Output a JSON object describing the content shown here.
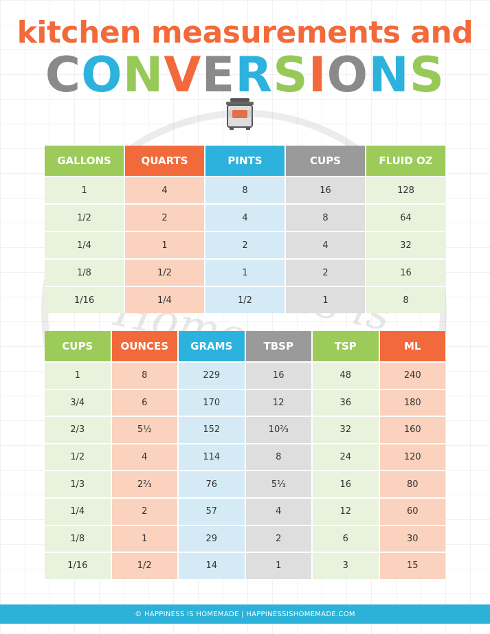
{
  "header": {
    "title": "kitchen measurements and",
    "subtitle": "CONVERSIONS",
    "subtitle_colors": [
      "#8a8a8a",
      "#2cb2dc",
      "#96c957",
      "#f26a3b",
      "#8a8a8a",
      "#2cb2dc",
      "#96c957",
      "#f26a3b",
      "#8a8a8a",
      "#2cb2dc",
      "#96c957"
    ]
  },
  "watermark": "Happiness is Homemade",
  "tables": [
    {
      "headers": [
        "GALLONS",
        "QUARTS",
        "PINTS",
        "CUPS",
        "FLUID OZ"
      ],
      "header_colors": [
        "#9ccb5a",
        "#f26a3b",
        "#2cb2dc",
        "#9a9a9a",
        "#9ccb5a"
      ],
      "body_colors": [
        "#e8f2dc",
        "#fad2bd",
        "#d4ebf6",
        "#dedede",
        "#e8f2dc"
      ],
      "rows": [
        [
          "1",
          "4",
          "8",
          "16",
          "128"
        ],
        [
          "1/2",
          "2",
          "4",
          "8",
          "64"
        ],
        [
          "1/4",
          "1",
          "2",
          "4",
          "32"
        ],
        [
          "1/8",
          "1/2",
          "1",
          "2",
          "16"
        ],
        [
          "1/16",
          "1/4",
          "1/2",
          "1",
          "8"
        ]
      ]
    },
    {
      "headers": [
        "CUPS",
        "OUNCES",
        "GRAMS",
        "TBSP",
        "TSP",
        "ML"
      ],
      "header_colors": [
        "#9ccb5a",
        "#f26a3b",
        "#2cb2dc",
        "#9a9a9a",
        "#9ccb5a",
        "#f26a3b"
      ],
      "body_colors": [
        "#e8f2dc",
        "#fad2bd",
        "#d4ebf6",
        "#dedede",
        "#e8f2dc",
        "#fad2bd"
      ],
      "rows": [
        [
          "1",
          "8",
          "229",
          "16",
          "48",
          "240"
        ],
        [
          "3/4",
          "6",
          "170",
          "12",
          "36",
          "180"
        ],
        [
          "2/3",
          "5½",
          "152",
          "10⅔",
          "32",
          "160"
        ],
        [
          "1/2",
          "4",
          "114",
          "8",
          "24",
          "120"
        ],
        [
          "1/3",
          "2⅔",
          "76",
          "5⅓",
          "16",
          "80"
        ],
        [
          "1/4",
          "2",
          "57",
          "4",
          "12",
          "60"
        ],
        [
          "1/8",
          "1",
          "29",
          "2",
          "6",
          "30"
        ],
        [
          "1/16",
          "1/2",
          "14",
          "1",
          "3",
          "15"
        ]
      ]
    }
  ],
  "footer": "© HAPPINESS IS HOMEMADE | HAPPINESSISHOMEMADE.COM"
}
